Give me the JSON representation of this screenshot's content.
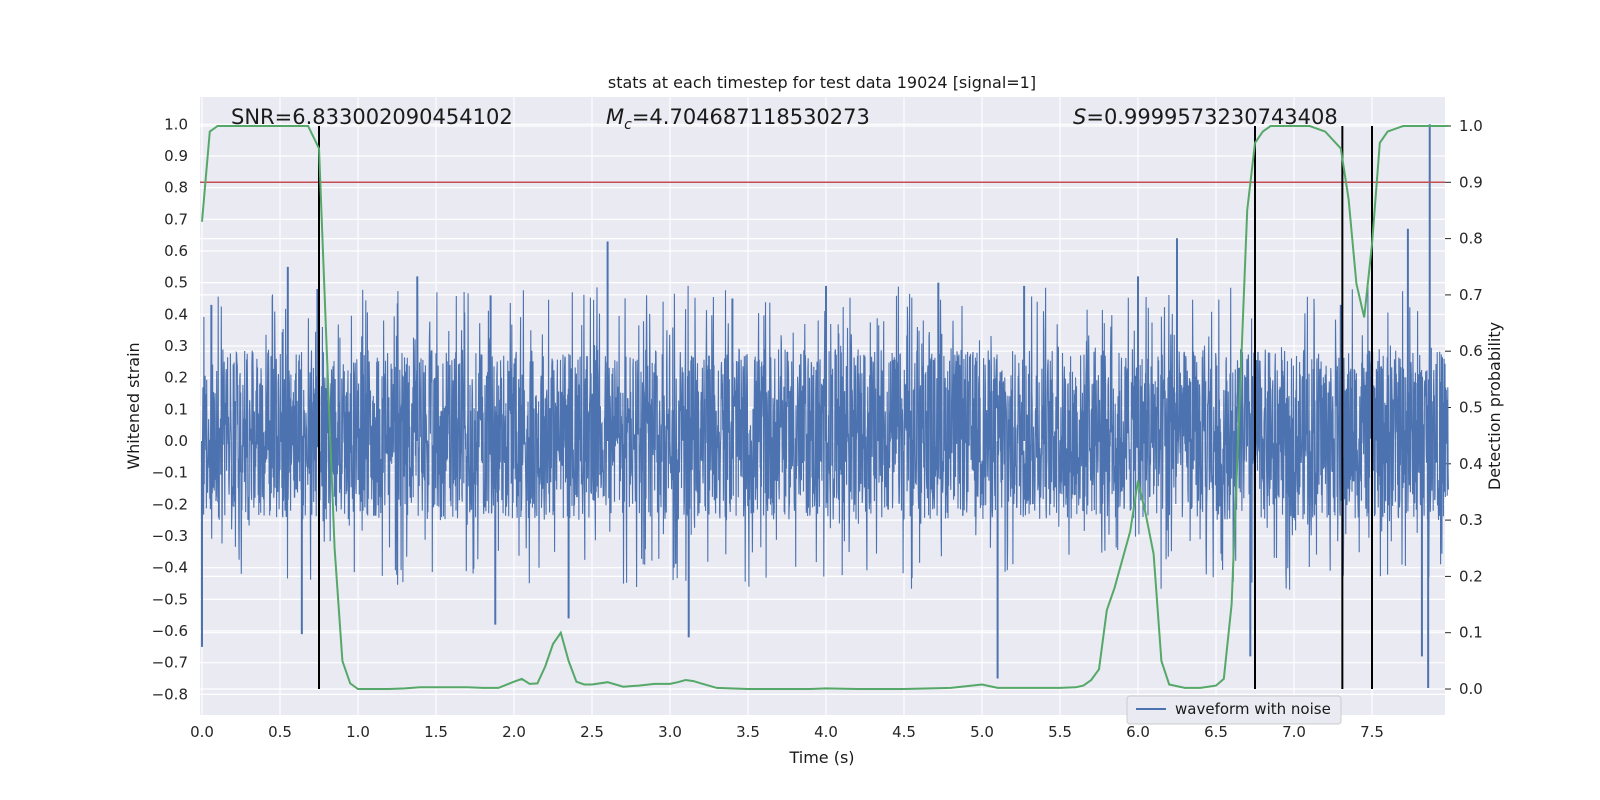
{
  "chart_data": {
    "type": "line",
    "title": "stats at each timestep for test data 19024 [signal=1]",
    "xlabel": "Time (s)",
    "ylabel_left": "Whitened strain",
    "ylabel_right": "Detection probability",
    "xlim": [
      0.0,
      8.0
    ],
    "ylim_left": [
      -0.87,
      1.08
    ],
    "ylim_right": [
      -0.05,
      1.04
    ],
    "xticks": [
      "0.0",
      "0.5",
      "1.0",
      "1.5",
      "2.0",
      "2.5",
      "3.0",
      "3.5",
      "4.0",
      "4.5",
      "5.0",
      "5.5",
      "6.0",
      "6.5",
      "7.0",
      "7.5"
    ],
    "yticks_left": [
      "1.0",
      "0.9",
      "0.8",
      "0.7",
      "0.6",
      "0.5",
      "0.4",
      "0.3",
      "0.2",
      "0.1",
      "0.0",
      "−0.1",
      "−0.2",
      "−0.3",
      "−0.4",
      "−0.5",
      "−0.6",
      "−0.7",
      "−0.8"
    ],
    "yticks_right": [
      "1.0",
      "0.9",
      "0.8",
      "0.7",
      "0.6",
      "0.5",
      "0.4",
      "0.3",
      "0.2",
      "0.1",
      "0.0"
    ],
    "annotations": {
      "snr": "SNR=6.833002090454102",
      "mc_symbol": "M",
      "mc_sub": "c",
      "mc_value": "=4.704687118530273",
      "s_symbol": "S",
      "s_value": "=0.9999573230743408"
    },
    "legend": "waveform with noise",
    "threshold_probability": 0.9,
    "vertical_lines_s": [
      0.75,
      6.75,
      7.31,
      7.5
    ],
    "series": [
      {
        "name": "waveform with noise",
        "color": "#4c72b0",
        "typical_envelope": [
          -0.25,
          0.29
        ],
        "peaks": [
          [
            0.0,
            -0.65
          ],
          [
            0.06,
            0.43
          ],
          [
            0.55,
            0.55
          ],
          [
            0.64,
            -0.61
          ],
          [
            0.74,
            0.48
          ],
          [
            1.38,
            0.52
          ],
          [
            1.85,
            0.46
          ],
          [
            1.88,
            -0.58
          ],
          [
            2.35,
            -0.56
          ],
          [
            2.6,
            0.63
          ],
          [
            3.12,
            -0.62
          ],
          [
            3.4,
            0.45
          ],
          [
            4.0,
            0.49
          ],
          [
            4.72,
            0.5
          ],
          [
            5.1,
            -0.75
          ],
          [
            5.27,
            0.49
          ],
          [
            6.0,
            0.52
          ],
          [
            6.25,
            0.64
          ],
          [
            6.72,
            -0.68
          ],
          [
            7.3,
            0.43
          ],
          [
            7.73,
            0.67
          ],
          [
            7.82,
            -0.68
          ],
          [
            7.87,
            1.0
          ],
          [
            7.86,
            -0.78
          ]
        ]
      },
      {
        "name": "detection probability",
        "color": "#55a868",
        "x": [
          0.0,
          0.05,
          0.1,
          0.2,
          0.3,
          0.4,
          0.5,
          0.6,
          0.68,
          0.75,
          0.8,
          0.85,
          0.9,
          0.95,
          1.0,
          1.1,
          1.2,
          1.3,
          1.4,
          1.5,
          1.6,
          1.7,
          1.8,
          1.9,
          2.0,
          2.05,
          2.1,
          2.15,
          2.2,
          2.25,
          2.3,
          2.35,
          2.4,
          2.45,
          2.5,
          2.6,
          2.7,
          2.8,
          2.9,
          3.0,
          3.05,
          3.1,
          3.15,
          3.2,
          3.3,
          3.5,
          3.7,
          3.9,
          4.0,
          4.2,
          4.5,
          4.8,
          5.0,
          5.1,
          5.3,
          5.5,
          5.6,
          5.65,
          5.7,
          5.75,
          5.8,
          5.85,
          5.9,
          5.95,
          6.0,
          6.05,
          6.1,
          6.15,
          6.2,
          6.3,
          6.4,
          6.5,
          6.55,
          6.6,
          6.65,
          6.7,
          6.75,
          6.8,
          6.85,
          6.9,
          7.0,
          7.1,
          7.2,
          7.3,
          7.35,
          7.4,
          7.45,
          7.5,
          7.55,
          7.6,
          7.7,
          7.8,
          7.99
        ],
        "y": [
          0.83,
          0.99,
          1.0,
          1.0,
          1.0,
          1.0,
          1.0,
          1.0,
          1.0,
          0.96,
          0.6,
          0.25,
          0.05,
          0.01,
          0.0,
          0.0,
          0.0,
          0.001,
          0.003,
          0.003,
          0.003,
          0.003,
          0.002,
          0.002,
          0.013,
          0.018,
          0.009,
          0.01,
          0.04,
          0.08,
          0.1,
          0.05,
          0.013,
          0.008,
          0.008,
          0.012,
          0.004,
          0.006,
          0.009,
          0.009,
          0.012,
          0.016,
          0.014,
          0.01,
          0.002,
          0.0,
          0.0,
          0.0,
          0.001,
          0.0,
          0.0,
          0.002,
          0.008,
          0.002,
          0.002,
          0.002,
          0.003,
          0.006,
          0.016,
          0.035,
          0.14,
          0.18,
          0.23,
          0.28,
          0.37,
          0.31,
          0.24,
          0.05,
          0.008,
          0.002,
          0.002,
          0.006,
          0.018,
          0.15,
          0.5,
          0.85,
          0.97,
          0.99,
          1.0,
          1.0,
          1.0,
          1.0,
          0.99,
          0.96,
          0.87,
          0.72,
          0.66,
          0.79,
          0.97,
          0.99,
          1.0,
          1.0,
          1.0
        ]
      }
    ]
  }
}
